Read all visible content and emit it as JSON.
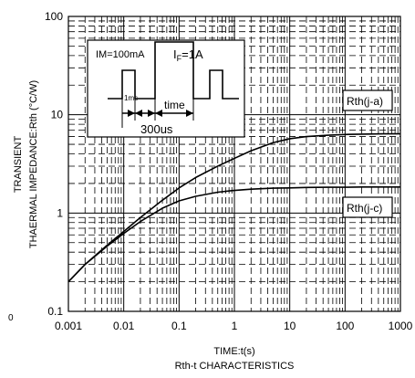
{
  "chart_data": {
    "type": "line",
    "caption": "Rth-t CHARACTERISTICS",
    "xlabel": "TIME:t(s)",
    "ylabel_line1": "TRANSIENT",
    "ylabel_line2": "THAERMAL IMPEDANCE:Rth (°C/W)",
    "x_scale": "log",
    "y_scale": "log",
    "xlim": [
      0.001,
      1000
    ],
    "ylim": [
      0.1,
      100
    ],
    "x_ticks": [
      "0.001",
      "0.01",
      "0.1",
      "1",
      "10",
      "100",
      "1000"
    ],
    "y_ticks": [
      "0.1",
      "1",
      "10",
      "100"
    ],
    "grid": "dashed log grid",
    "series": [
      {
        "name": "Rth(j-a)",
        "x": [
          0.001,
          0.002,
          0.005,
          0.01,
          0.02,
          0.05,
          0.1,
          0.2,
          0.5,
          1,
          2,
          5,
          10,
          20,
          50,
          100,
          200,
          500,
          1000
        ],
        "y": [
          0.2,
          0.3,
          0.47,
          0.65,
          0.9,
          1.35,
          1.8,
          2.3,
          3.0,
          3.6,
          4.3,
          5.2,
          5.7,
          6.0,
          6.2,
          6.3,
          6.35,
          6.4,
          6.4
        ]
      },
      {
        "name": "Rth(j-c)",
        "x": [
          0.001,
          0.002,
          0.005,
          0.01,
          0.02,
          0.05,
          0.1,
          0.2,
          0.5,
          1,
          2,
          5,
          10,
          20,
          50,
          100,
          200,
          500,
          1000
        ],
        "y": [
          0.2,
          0.3,
          0.46,
          0.62,
          0.82,
          1.12,
          1.33,
          1.48,
          1.63,
          1.7,
          1.75,
          1.79,
          1.8,
          1.82,
          1.83,
          1.83,
          1.84,
          1.84,
          1.84
        ]
      }
    ],
    "inset": {
      "im_label": "IM=100mA",
      "if_label": "I",
      "if_subscript": "F",
      "if_value": "=1A",
      "pulse_label": "1ms",
      "time_label": "time",
      "period_label": "300us"
    },
    "stray_label": "0"
  }
}
